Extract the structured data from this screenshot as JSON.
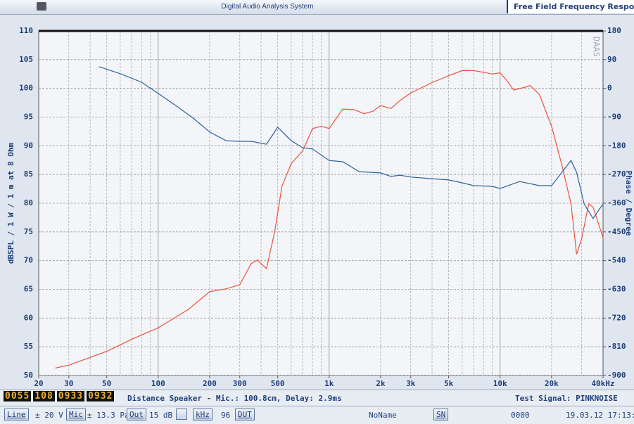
{
  "header": {
    "title": "Digital Audio Analysis System",
    "mode": "Free Field Frequency Response"
  },
  "chart_data": {
    "type": "line",
    "xscale": "log",
    "grid": true,
    "ylabel": "dBSPL / 1 W / 1 m at 8 Ohm",
    "y2label": "Phase / Degree",
    "watermark": "DAAS",
    "xlim": [
      20,
      40000
    ],
    "xticks": [
      20,
      30,
      50,
      100,
      200,
      300,
      500,
      {
        "value": 1000,
        "label": "1k"
      },
      {
        "value": 2000,
        "label": "2k"
      },
      {
        "value": 3000,
        "label": "3k"
      },
      {
        "value": 5000,
        "label": "5k"
      },
      {
        "value": 10000,
        "label": "10k"
      },
      {
        "value": 20000,
        "label": "20k"
      },
      {
        "value": 40000,
        "label": "40kHz"
      }
    ],
    "xgrid": [
      30,
      40,
      50,
      60,
      70,
      80,
      90,
      100,
      200,
      300,
      400,
      500,
      600,
      700,
      800,
      900,
      1000,
      2000,
      3000,
      4000,
      5000,
      6000,
      7000,
      8000,
      9000,
      10000,
      20000,
      30000
    ],
    "ylim": [
      50,
      110
    ],
    "yticks": [
      50,
      55,
      60,
      65,
      70,
      75,
      80,
      85,
      90,
      95,
      100,
      105,
      110
    ],
    "y2lim": [
      -900,
      180
    ],
    "y2ticks": [
      -900,
      -810,
      -720,
      -630,
      -540,
      -450,
      -360,
      -270,
      -180,
      -90,
      0,
      90,
      180
    ],
    "series": [
      {
        "name": "SPL",
        "color": "#e8553a",
        "x": [
          25,
          30,
          50,
          70,
          100,
          150,
          200,
          250,
          300,
          350,
          380,
          430,
          480,
          530,
          600,
          700,
          800,
          900,
          1000,
          1200,
          1400,
          1600,
          1800,
          2000,
          2300,
          2600,
          3000,
          4000,
          5000,
          6000,
          7000,
          8000,
          9000,
          10000,
          11000,
          12000,
          14000,
          15000,
          17000,
          20000,
          23000,
          26000,
          28000,
          30000,
          33000,
          35000,
          40000
        ],
        "values": [
          51.3,
          51.8,
          54.2,
          56.3,
          58.3,
          61.5,
          64.6,
          65.1,
          65.8,
          69.5,
          70.1,
          68.6,
          75,
          83,
          86.9,
          89.1,
          93,
          93.4,
          93,
          96.4,
          96.3,
          95.6,
          96,
          97,
          96.5,
          97.9,
          99.2,
          101,
          102.2,
          103.1,
          103.1,
          102.8,
          102.5,
          102.7,
          101.3,
          99.7,
          100.2,
          100.5,
          98.9,
          93.4,
          86.6,
          79.9,
          71.1,
          73.8,
          79.9,
          79.3,
          74
        ]
      },
      {
        "name": "Phase",
        "color": "#2e5fa0",
        "axis": "y2",
        "x": [
          45,
          60,
          80,
          100,
          130,
          160,
          200,
          250,
          300,
          350,
          430,
          500,
          600,
          700,
          800,
          1000,
          1200,
          1500,
          2000,
          2300,
          2600,
          3000,
          4000,
          5000,
          6000,
          7000,
          9000,
          10000,
          13000,
          17000,
          20000,
          23000,
          26000,
          28000,
          31000,
          35000,
          40000
        ],
        "values": [
          68,
          46,
          19,
          -16,
          -58,
          -93,
          -137,
          -164,
          -166,
          -166,
          -175,
          -122,
          -164,
          -186,
          -190,
          -226,
          -230,
          -261,
          -265,
          -276,
          -272,
          -278,
          -283,
          -287,
          -296,
          -305,
          -307,
          -314,
          -292,
          -305,
          -305,
          -263,
          -226,
          -263,
          -362,
          -408,
          -362
        ]
      }
    ]
  },
  "status": {
    "lcd": [
      "0055",
      "108",
      "0933",
      "0932"
    ],
    "info": "Distance Speaker - Mic.: 100.8cm, Delay: 2.9ms",
    "signal": "Test Signal: PINKNOISE"
  },
  "toolbar": {
    "line": "Line",
    "voltage": "± 20 V",
    "mic": "Mic",
    "pressure": "± 13.3 Pa",
    "out": "Out",
    "gain": "15 dB",
    "unit": "kHz",
    "rate": "96",
    "dut": "DUT",
    "name": "NoName",
    "sn": "SN",
    "serial": "0000",
    "datetime": "19.03.12 17:13:39"
  }
}
